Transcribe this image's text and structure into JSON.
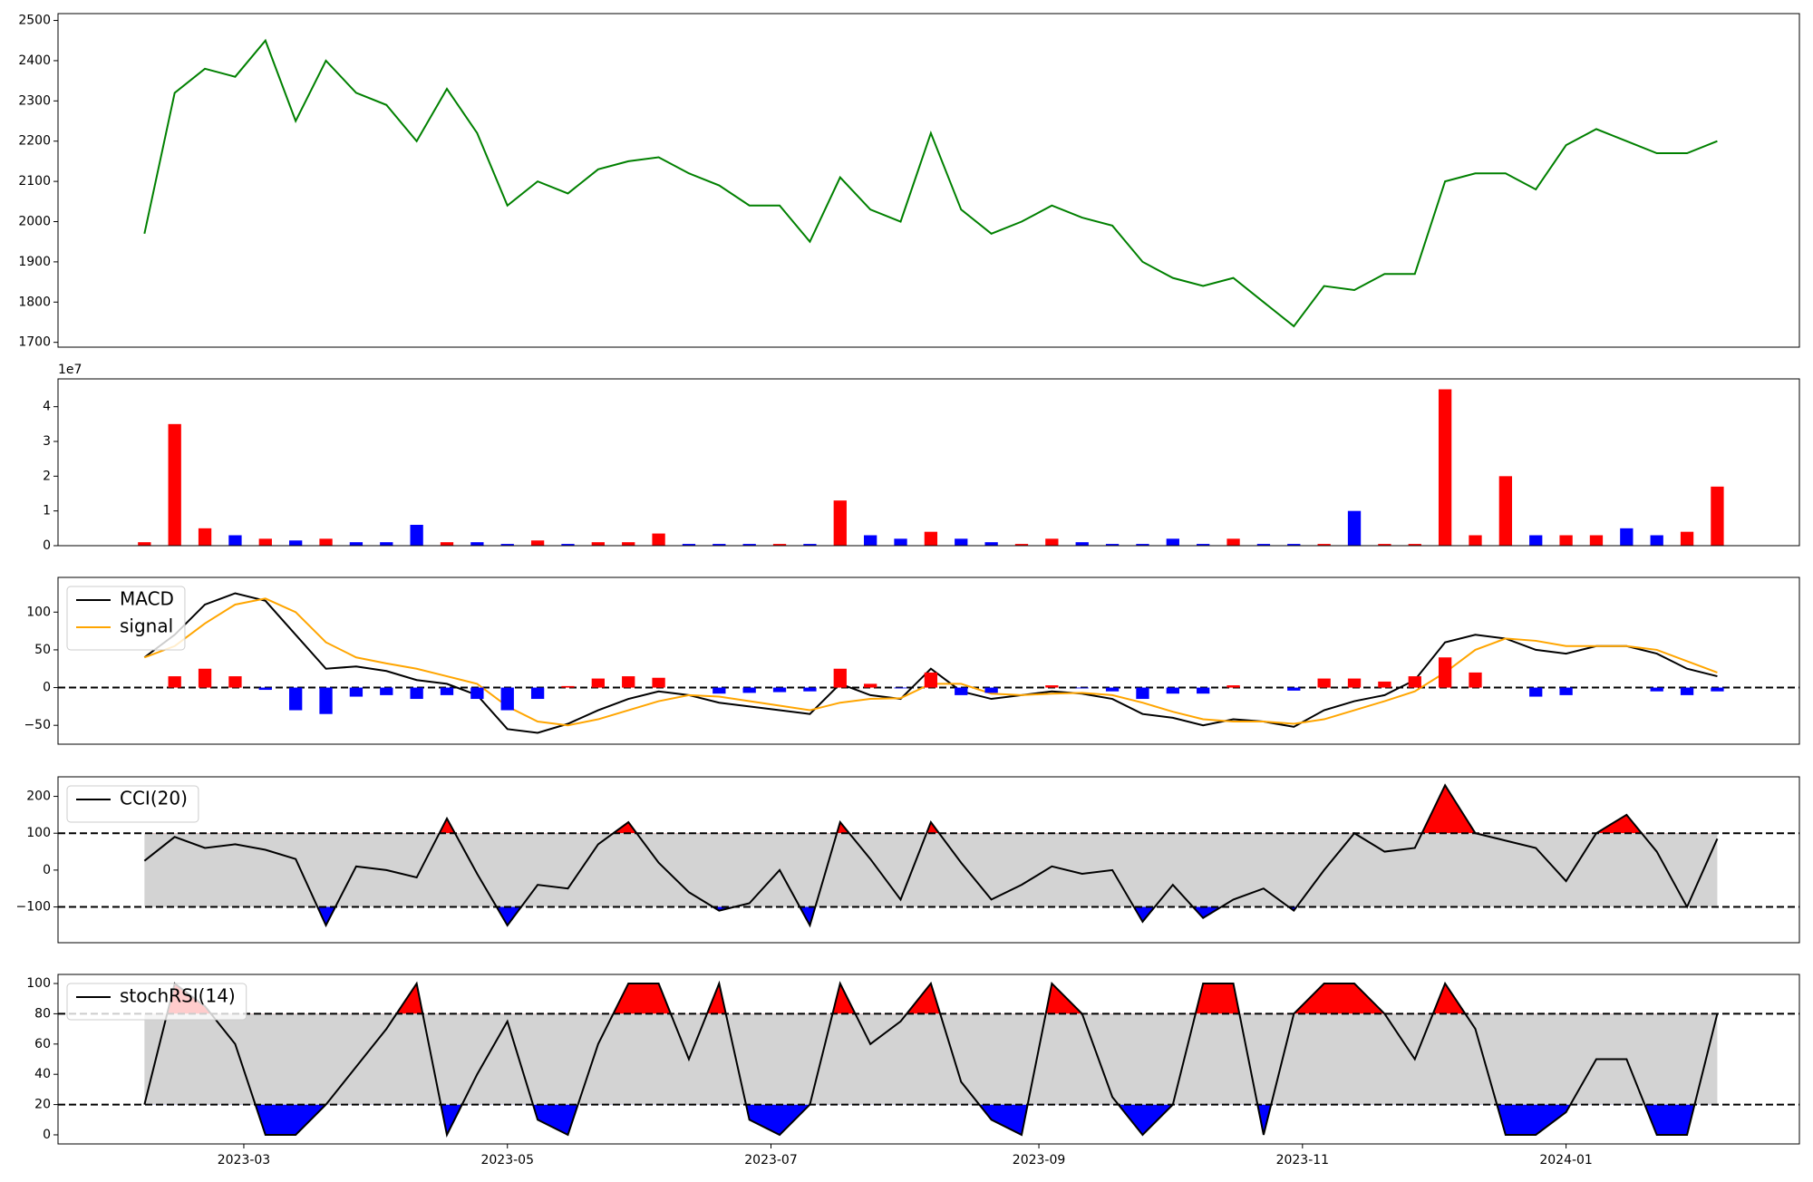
{
  "chart_data": [
    {
      "type": "line",
      "series": [
        {
          "color": "#008000",
          "values": [
            1970,
            2320,
            2380,
            2360,
            2450,
            2250,
            2400,
            2320,
            2290,
            2200,
            2330,
            2220,
            2040,
            2100,
            2070,
            2130,
            2150,
            2160,
            2120,
            2090,
            2040,
            2040,
            1950,
            2110,
            2030,
            2000,
            2220,
            2030,
            1970,
            2000,
            2040,
            2010,
            1990,
            1900,
            1860,
            1840,
            1860,
            1800,
            1740,
            1840,
            1830,
            1870,
            1870,
            2100,
            2120,
            2120,
            2080,
            2190,
            2230,
            2200,
            2170,
            2170,
            2200
          ]
        }
      ],
      "ylim": [
        1688,
        2517
      ],
      "yticks": [
        1700,
        1800,
        1900,
        2000,
        2100,
        2200,
        2300,
        2400,
        2500
      ]
    },
    {
      "type": "bar",
      "offset_label": "1e7",
      "series": [
        {
          "up_color": "#ff0000",
          "down_color": "#0000ff",
          "values": [
            0.1,
            3.5,
            0.5,
            0.3,
            0.2,
            0.15,
            0.2,
            0.1,
            0.1,
            0.6,
            0.1,
            0.1,
            0.05,
            0.15,
            0.05,
            0.1,
            0.1,
            0.35,
            0.05,
            0.05,
            0.05,
            0.05,
            0.05,
            1.3,
            0.3,
            0.2,
            0.4,
            0.2,
            0.1,
            0.05,
            0.2,
            0.1,
            0.05,
            0.05,
            0.2,
            0.05,
            0.2,
            0.05,
            0.05,
            0.05,
            1.0,
            0.05,
            0.05,
            4.5,
            0.3,
            2.0,
            0.3,
            0.3,
            0.3,
            0.5,
            0.3,
            0.4,
            1.7
          ]
        }
      ],
      "ylim": [
        0,
        4.8
      ],
      "yticks": [
        0,
        1,
        2,
        3,
        4
      ]
    },
    {
      "type": "line",
      "legend": "upper left",
      "hlines": [
        0
      ],
      "series": [
        {
          "name": "MACD",
          "color": "#000000",
          "values": [
            40,
            70,
            110,
            125,
            115,
            70,
            25,
            28,
            22,
            10,
            5,
            -10,
            -55,
            -60,
            -48,
            -30,
            -15,
            -5,
            -10,
            -20,
            -25,
            -30,
            -35,
            5,
            -10,
            -15,
            25,
            -5,
            -15,
            -10,
            -5,
            -8,
            -15,
            -35,
            -40,
            -50,
            -42,
            -45,
            -52,
            -30,
            -18,
            -10,
            10,
            60,
            70,
            65,
            50,
            45,
            55,
            55,
            45,
            25,
            15
          ]
        },
        {
          "name": "signal",
          "color": "#ffa500",
          "values": [
            40,
            55,
            85,
            110,
            118,
            100,
            60,
            40,
            32,
            25,
            15,
            5,
            -25,
            -45,
            -50,
            -42,
            -30,
            -18,
            -10,
            -12,
            -18,
            -24,
            -30,
            -20,
            -15,
            -14,
            5,
            5,
            -8,
            -10,
            -8,
            -7,
            -10,
            -20,
            -32,
            -42,
            -45,
            -45,
            -48,
            -42,
            -30,
            -18,
            -5,
            20,
            50,
            65,
            62,
            55,
            55,
            55,
            50,
            35,
            20
          ]
        },
        {
          "type": "bar",
          "pos_color": "#ff0000",
          "neg_color": "#0000ff",
          "values": [
            0,
            15,
            25,
            15,
            -3,
            -30,
            -35,
            -12,
            -10,
            -15,
            -10,
            -15,
            -30,
            -15,
            2,
            12,
            15,
            13,
            0,
            -8,
            -7,
            -6,
            -5,
            25,
            5,
            -1,
            20,
            -10,
            -7,
            0,
            3,
            -1,
            -5,
            -15,
            -8,
            -8,
            3,
            0,
            -4,
            12,
            12,
            8,
            15,
            40,
            20,
            0,
            -12,
            -10,
            0,
            0,
            -5,
            -10,
            -5
          ]
        }
      ],
      "ylim": [
        -75,
        146
      ],
      "yticks": [
        {
          "value": -50,
          "label": "−50"
        },
        0,
        50,
        100
      ]
    },
    {
      "type": "line",
      "legend": "upper left",
      "hlines": [
        100,
        -100
      ],
      "band": [
        -100,
        100
      ],
      "band_color": "#d3d3d3",
      "over_color": "#ff0000",
      "under_color": "#0000ff",
      "series": [
        {
          "name": "CCI(20)",
          "color": "#000000",
          "values": [
            25,
            90,
            60,
            70,
            55,
            30,
            -150,
            10,
            0,
            -20,
            140,
            -10,
            -150,
            -40,
            -50,
            70,
            130,
            20,
            -60,
            -110,
            -90,
            0,
            -150,
            130,
            30,
            -80,
            130,
            20,
            -80,
            -40,
            10,
            -10,
            0,
            -140,
            -40,
            -130,
            -80,
            -50,
            -110,
            0,
            100,
            50,
            60,
            230,
            100,
            80,
            60,
            -30,
            100,
            150,
            50,
            -100,
            85
          ]
        }
      ],
      "ylim": [
        -197,
        253
      ],
      "yticks": [
        {
          "value": -100,
          "label": "−100"
        },
        0,
        100,
        200
      ]
    },
    {
      "type": "line",
      "legend": "upper left",
      "hlines": [
        80,
        20
      ],
      "band": [
        20,
        80
      ],
      "band_color": "#d3d3d3",
      "over_color": "#ff0000",
      "under_color": "#0000ff",
      "series": [
        {
          "name": "stochRSI(14)",
          "color": "#000000",
          "values": [
            20,
            100,
            85,
            60,
            0,
            0,
            20,
            45,
            70,
            100,
            0,
            40,
            75,
            10,
            0,
            60,
            100,
            100,
            50,
            100,
            10,
            0,
            20,
            100,
            60,
            75,
            100,
            35,
            10,
            0,
            100,
            80,
            25,
            0,
            20,
            100,
            100,
            0,
            80,
            100,
            100,
            80,
            50,
            100,
            70,
            0,
            0,
            15,
            50,
            50,
            0,
            0,
            80
          ]
        }
      ],
      "ylim": [
        -6,
        106
      ],
      "yticks": [
        0,
        20,
        40,
        60,
        80,
        100
      ],
      "x": [
        "2023-02-06",
        "2023-02-13",
        "2023-02-20",
        "2023-02-27",
        "2023-03-06",
        "2023-03-13",
        "2023-03-20",
        "2023-03-27",
        "2023-04-03",
        "2023-04-10",
        "2023-04-17",
        "2023-04-24",
        "2023-05-01",
        "2023-05-08",
        "2023-05-15",
        "2023-05-22",
        "2023-05-29",
        "2023-06-05",
        "2023-06-12",
        "2023-06-19",
        "2023-06-26",
        "2023-07-03",
        "2023-07-10",
        "2023-07-17",
        "2023-07-24",
        "2023-07-31",
        "2023-08-07",
        "2023-08-14",
        "2023-08-21",
        "2023-08-28",
        "2023-09-04",
        "2023-09-11",
        "2023-09-18",
        "2023-09-25",
        "2023-10-02",
        "2023-10-09",
        "2023-10-16",
        "2023-10-23",
        "2023-10-30",
        "2023-11-06",
        "2023-11-13",
        "2023-11-20",
        "2023-11-27",
        "2023-12-04",
        "2023-12-11",
        "2023-12-18",
        "2023-12-25",
        "2024-01-01",
        "2024-01-08",
        "2024-01-15",
        "2024-01-22",
        "2024-01-29",
        "2024-02-05"
      ],
      "xlim": [
        "2023-01-17",
        "2024-02-24"
      ],
      "xticks": [
        {
          "value": "2023-03-01",
          "label": "2023-03"
        },
        {
          "value": "2023-05-01",
          "label": "2023-05"
        },
        {
          "value": "2023-07-01",
          "label": "2023-07"
        },
        {
          "value": "2023-09-01",
          "label": "2023-09"
        },
        {
          "value": "2023-11-01",
          "label": "2023-11"
        },
        {
          "value": "2024-01-01",
          "label": "2024-01"
        }
      ]
    }
  ]
}
